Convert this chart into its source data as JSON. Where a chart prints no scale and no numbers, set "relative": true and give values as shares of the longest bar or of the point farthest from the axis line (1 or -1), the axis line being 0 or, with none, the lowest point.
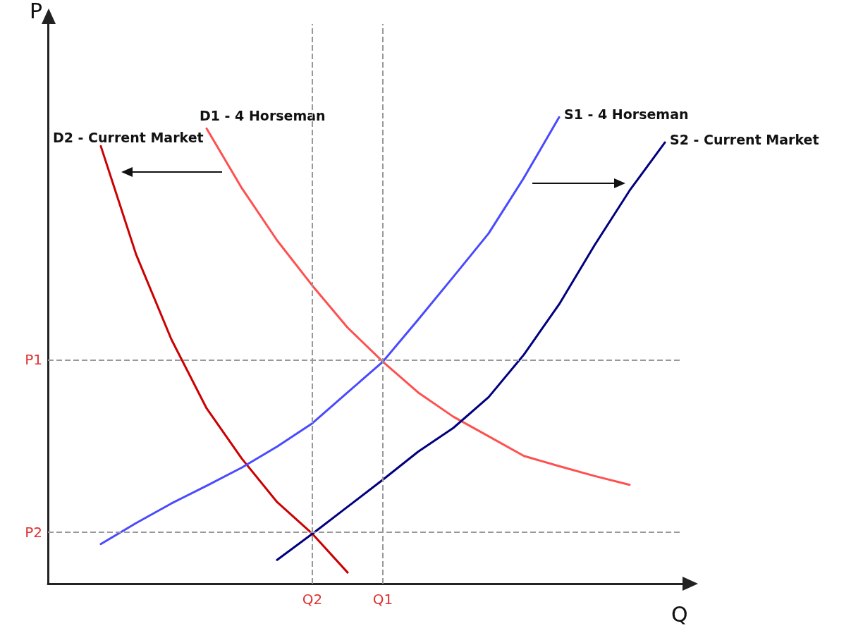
{
  "chart_data": {
    "type": "line",
    "relative": true,
    "xlabel": "Q",
    "ylabel": "P",
    "tick_labels": "x",
    "grid": false,
    "legend": false,
    "marker": "none",
    "line_style": "solid",
    "categories": [
      null,
      null,
      null,
      null,
      null,
      null,
      null,
      "Q2",
      null,
      "Q1",
      null,
      null,
      null,
      null,
      null,
      null,
      null,
      null
    ],
    "series": [
      {
        "name": "D2 - Current Market",
        "color": "#cc0000",
        "values": [
          null,
          0.938,
          0.706,
          0.524,
          0.376,
          0.268,
          0.175,
          0.107,
          0.024,
          null,
          null,
          null,
          null,
          null,
          null,
          null,
          null,
          null
        ]
      },
      {
        "name": "D1 - 4 Horseman",
        "color": "#ff5050",
        "values": [
          null,
          null,
          null,
          null,
          0.976,
          0.848,
          0.736,
          0.639,
          0.549,
          0.476,
          0.41,
          0.358,
          0.316,
          0.274,
          0.252,
          0.231,
          0.212,
          null
        ]
      },
      {
        "name": "S1 - 4 Horseman",
        "color": "#4a4aff",
        "values": [
          null,
          0.085,
          0.13,
          0.172,
          0.21,
          0.249,
          0.294,
          0.344,
          0.41,
          0.476,
          0.566,
          0.658,
          0.751,
          0.87,
          1.0,
          null,
          null,
          null
        ]
      },
      {
        "name": "S2 - Current Market",
        "color": "#000080",
        "values": [
          null,
          null,
          null,
          null,
          null,
          null,
          0.051,
          0.107,
          0.165,
          0.223,
          0.283,
          0.334,
          0.4,
          0.491,
          0.599,
          0.725,
          0.843,
          0.946
        ]
      }
    ],
    "ref_lines": [
      {
        "axis": "y",
        "value": 0.476,
        "label": "P1",
        "color": "#999999",
        "line_style": "dashed"
      },
      {
        "axis": "y",
        "value": 0.107,
        "label": "P2",
        "color": "#999999",
        "line_style": "dashed"
      },
      {
        "axis": "x",
        "value": "Q2",
        "label": null,
        "color": "#999999",
        "line_style": "dashed"
      },
      {
        "axis": "x",
        "value": "Q1",
        "label": null,
        "color": "#999999",
        "line_style": "dashed"
      }
    ]
  }
}
